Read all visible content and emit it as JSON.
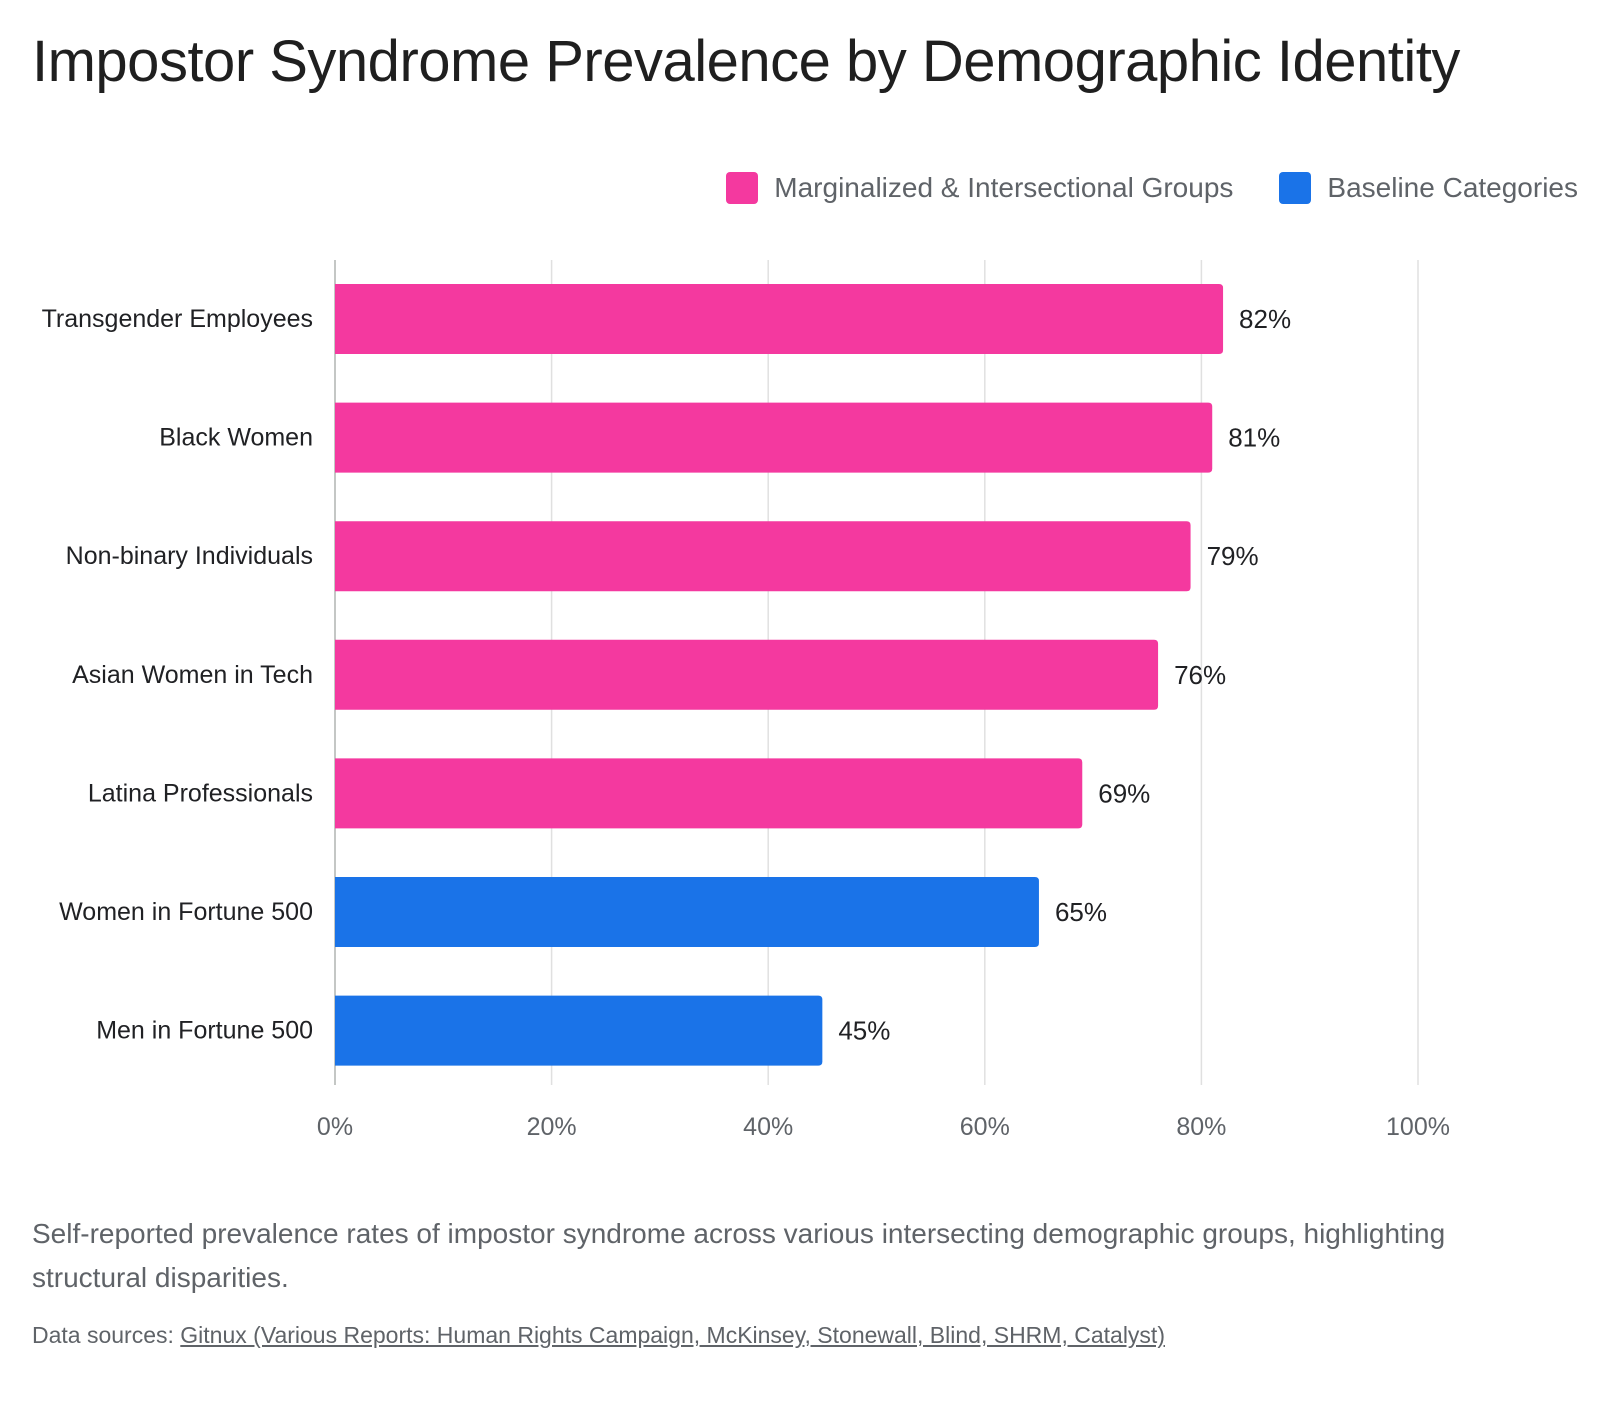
{
  "title": "Impostor Syndrome Prevalence by Demographic Identity",
  "legend": {
    "items": [
      {
        "label": "Marginalized & Intersectional Groups",
        "color": "#f4399f"
      },
      {
        "label": "Baseline Categories",
        "color": "#1a73e8"
      }
    ]
  },
  "chart_data": {
    "type": "bar",
    "orientation": "horizontal",
    "categories": [
      "Transgender Employees",
      "Black Women",
      "Non-binary Individuals",
      "Asian Women in Tech",
      "Latina Professionals",
      "Women in Fortune 500",
      "Men in Fortune 500"
    ],
    "values": [
      82,
      81,
      79,
      76,
      69,
      65,
      45
    ],
    "groups": [
      "Marginalized & Intersectional Groups",
      "Marginalized & Intersectional Groups",
      "Marginalized & Intersectional Groups",
      "Marginalized & Intersectional Groups",
      "Marginalized & Intersectional Groups",
      "Baseline Categories",
      "Baseline Categories"
    ],
    "data_labels": [
      "82%",
      "81%",
      "79%",
      "76%",
      "69%",
      "65%",
      "45%"
    ],
    "xlim": [
      0,
      100
    ],
    "x_ticks": [
      0,
      20,
      40,
      60,
      80,
      100
    ],
    "x_tick_labels": [
      "0%",
      "20%",
      "40%",
      "60%",
      "80%",
      "100%"
    ],
    "grid": true,
    "legend_position": "top-right"
  },
  "subtitle": "Self-reported prevalence rates of impostor syndrome across various intersecting demographic groups, highlighting structural disparities.",
  "source": {
    "prefix": "Data sources: ",
    "link_text": "Gitnux (Various Reports: Human Rights Campaign, McKinsey, Stonewall, Blind, SHRM, Catalyst)"
  }
}
